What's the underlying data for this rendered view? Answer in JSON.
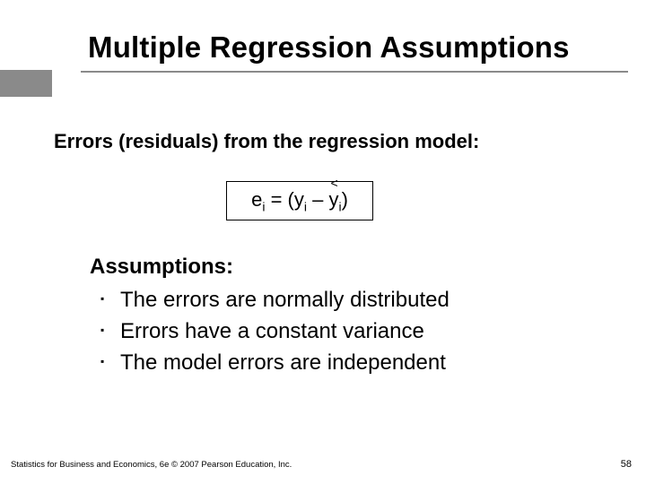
{
  "title": "Multiple Regression Assumptions",
  "intro": "Errors (residuals) from the regression model:",
  "equation": {
    "leftVar": "e",
    "leftSub": "i",
    "mid": " = (y",
    "midSub": "i",
    "join": " – ",
    "hat": "<",
    "rightVar": "y",
    "rightSub": "i",
    "close": ")"
  },
  "assumptionsHeading": "Assumptions:",
  "assumptions": [
    "The errors are normally distributed",
    "Errors have a constant variance",
    "The model errors are independent"
  ],
  "footer": "Statistics for Business and Economics, 6e © 2007 Pearson Education, Inc.",
  "pageNumber": "58",
  "colors": {
    "accent": "#8a8a8a",
    "text": "#000000",
    "background": "#ffffff"
  }
}
